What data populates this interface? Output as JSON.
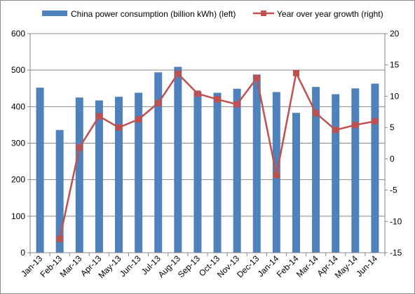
{
  "chart_data": {
    "type": "bar+line",
    "categories": [
      "Jan-13",
      "Feb-13",
      "Mar-13",
      "Apr-13",
      "May-13",
      "Jun-13",
      "Jul-13",
      "Aug-13",
      "Sep-13",
      "Oct-13",
      "Nov-13",
      "Dec-13",
      "Jan-14",
      "Feb-14",
      "Mar-14",
      "Apr-14",
      "May-14",
      "Jun-14"
    ],
    "series": [
      {
        "name": "China power consumption  (billion kWh) (left)",
        "kind": "bar",
        "axis": "left",
        "color": "#4f81bd",
        "values": [
          452,
          336,
          425,
          417,
          427,
          438,
          494,
          509,
          441,
          438,
          449,
          488,
          440,
          383,
          454,
          434,
          450,
          463
        ]
      },
      {
        "name": "Year over year growth (right)",
        "kind": "line",
        "axis": "right",
        "color": "#c0504d",
        "values": [
          null,
          -12.8,
          1.8,
          6.8,
          5.0,
          6.3,
          8.9,
          13.6,
          10.4,
          9.5,
          8.7,
          12.9,
          -2.6,
          13.7,
          7.3,
          4.6,
          5.4,
          6.0
        ]
      }
    ],
    "left_axis": {
      "min": 0,
      "max": 600,
      "step": 100
    },
    "right_axis": {
      "min": -15,
      "max": 20,
      "step": 5
    },
    "grid": "horizontal",
    "legend_position": "top"
  }
}
